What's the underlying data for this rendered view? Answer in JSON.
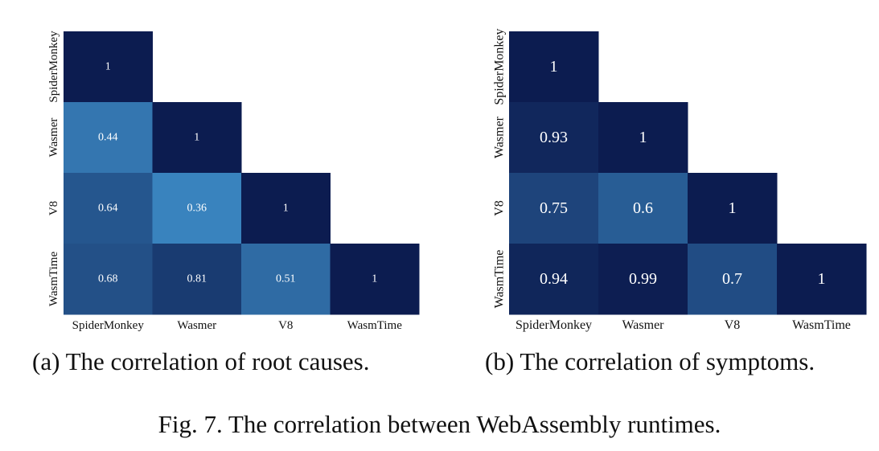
{
  "chart_data": [
    {
      "type": "heatmap",
      "labels": [
        "SpiderMonkey",
        "Wasmer",
        "V8",
        "WasmTime"
      ],
      "matrix": [
        [
          1
        ],
        [
          0.44,
          1
        ],
        [
          0.64,
          0.36,
          1
        ],
        [
          0.68,
          0.81,
          0.51,
          1
        ]
      ],
      "cell_labels": [
        [
          "1"
        ],
        [
          "0.44",
          "1"
        ],
        [
          "0.64",
          "0.36",
          "1"
        ],
        [
          "0.68",
          "0.81",
          "0.51",
          "1"
        ]
      ],
      "lower_triangle": true,
      "color_scale": {
        "low": "#3a85c0",
        "high": "#0c1c50"
      },
      "caption": "(a) The correlation of root causes."
    },
    {
      "type": "heatmap",
      "labels": [
        "SpiderMonkey",
        "Wasmer",
        "V8",
        "WasmTime"
      ],
      "matrix": [
        [
          1
        ],
        [
          0.93,
          1
        ],
        [
          0.75,
          0.6,
          1
        ],
        [
          0.94,
          0.99,
          0.7,
          1
        ]
      ],
      "cell_labels": [
        [
          "1"
        ],
        [
          "0.93",
          "1"
        ],
        [
          "0.75",
          "0.6",
          "1"
        ],
        [
          "0.94",
          "0.99",
          "0.7",
          "1"
        ]
      ],
      "lower_triangle": true,
      "color_scale": {
        "low": "#3a85c0",
        "high": "#0c1c50"
      },
      "caption": "(b) The correlation of symptoms."
    }
  ],
  "figure_caption": "Fig. 7.  The correlation between WebAssembly runtimes."
}
